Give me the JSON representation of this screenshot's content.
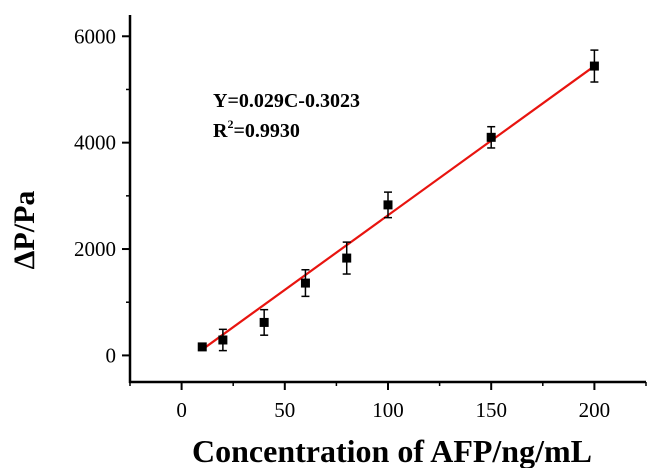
{
  "chart_data": {
    "type": "scatter",
    "xlabel": "Concentration of AFP/ng/mL",
    "ylabel": "ΔP/Pa",
    "xlim": [
      -25,
      225
    ],
    "ylim": [
      -500,
      6400
    ],
    "xticks": [
      0,
      50,
      100,
      150,
      200
    ],
    "yticks": [
      0,
      2000,
      4000,
      6000
    ],
    "grid": false,
    "series": [
      {
        "type": "scatter",
        "marker": "square",
        "color": "#000000",
        "x": [
          10,
          20,
          40,
          60,
          80,
          100,
          150,
          200
        ],
        "y": [
          160,
          290,
          620,
          1360,
          1830,
          2830,
          4100,
          5440
        ],
        "error": [
          60,
          200,
          240,
          250,
          300,
          240,
          200,
          300
        ]
      },
      {
        "type": "line",
        "color": "#e8140f",
        "x": [
          10,
          200
        ],
        "y": [
          110,
          5440
        ]
      }
    ],
    "annotations": {
      "equation": "Y=0.029C-0.3023",
      "r2_prefix": "R",
      "r2_sup": "2",
      "r2_value": "=0.9930"
    }
  }
}
